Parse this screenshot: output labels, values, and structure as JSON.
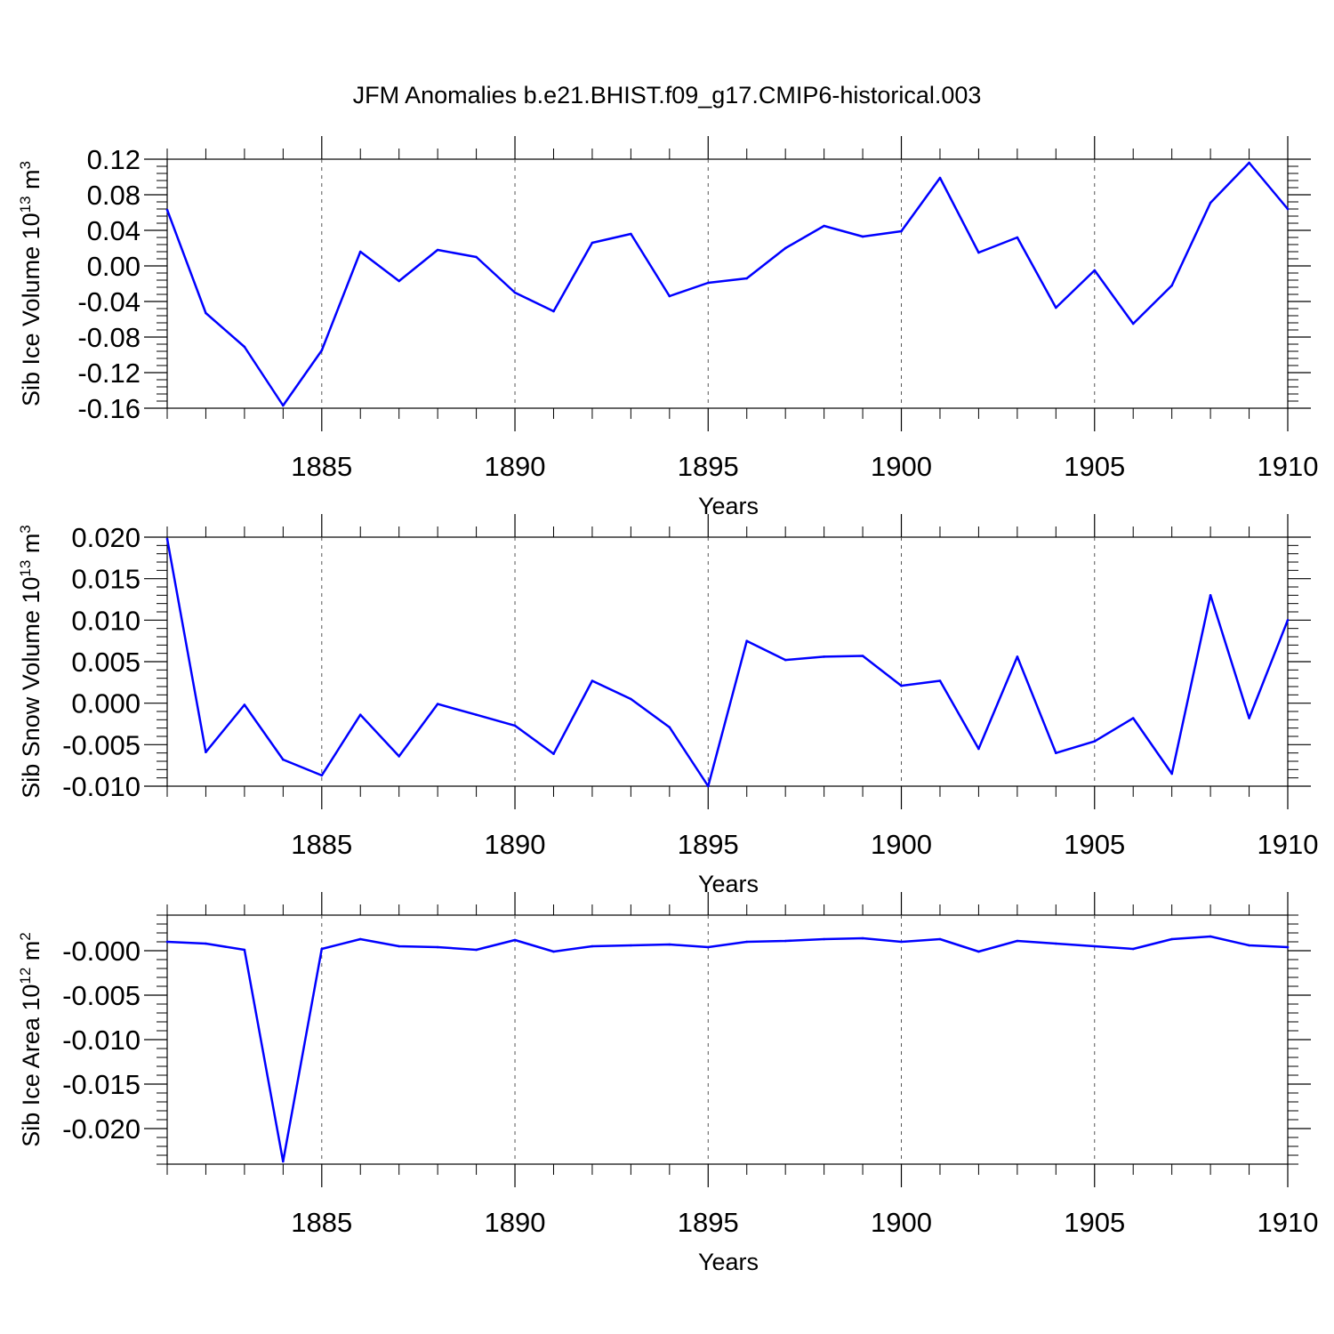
{
  "title": "JFM Anomalies b.e21.BHIST.f09_g17.CMIP6-historical.003",
  "line_color": "#0000ff",
  "chart_data": [
    {
      "type": "line",
      "ylabel_main": "Sib Ice Volume 10",
      "ylabel_exp": "13",
      "ylabel_unit": " m",
      "ylabel_unit_exp": "3",
      "xlabel": "Years",
      "xlim": [
        1881,
        1910
      ],
      "ylim": [
        -0.16,
        0.12
      ],
      "yticks": [
        "0.12",
        "0.08",
        "0.04",
        "0.00",
        "-0.04",
        "-0.08",
        "-0.12",
        "-0.16"
      ],
      "yticks_values": [
        0.12,
        0.08,
        0.04,
        0.0,
        -0.04,
        -0.08,
        -0.12,
        -0.16
      ],
      "xticks": [
        "1885",
        "1890",
        "1895",
        "1900",
        "1905",
        "1910"
      ],
      "xticks_values": [
        1885,
        1890,
        1895,
        1900,
        1905,
        1910
      ],
      "x": [
        1881,
        1882,
        1883,
        1884,
        1885,
        1886,
        1887,
        1888,
        1889,
        1890,
        1891,
        1892,
        1893,
        1894,
        1895,
        1896,
        1897,
        1898,
        1899,
        1900,
        1901,
        1902,
        1903,
        1904,
        1905,
        1906,
        1907,
        1908,
        1909,
        1910
      ],
      "values": [
        0.063,
        -0.053,
        -0.091,
        -0.157,
        -0.095,
        0.016,
        -0.017,
        0.018,
        0.01,
        -0.03,
        -0.051,
        0.026,
        0.036,
        -0.034,
        -0.019,
        -0.014,
        0.02,
        0.045,
        0.033,
        0.039,
        0.099,
        0.015,
        0.032,
        -0.047,
        -0.005,
        -0.065,
        -0.022,
        0.071,
        0.116,
        0.064
      ]
    },
    {
      "type": "line",
      "ylabel_main": "Sib Snow Volume 10",
      "ylabel_exp": "13",
      "ylabel_unit": " m",
      "ylabel_unit_exp": "3",
      "xlabel": "Years",
      "xlim": [
        1881,
        1910
      ],
      "ylim": [
        -0.01,
        0.02
      ],
      "yticks": [
        "0.020",
        "0.015",
        "0.010",
        "0.005",
        "0.000",
        "-0.005",
        "-0.010"
      ],
      "yticks_values": [
        0.02,
        0.015,
        0.01,
        0.005,
        0.0,
        -0.005,
        -0.01
      ],
      "xticks": [
        "1885",
        "1890",
        "1895",
        "1900",
        "1905",
        "1910"
      ],
      "xticks_values": [
        1885,
        1890,
        1895,
        1900,
        1905,
        1910
      ],
      "x": [
        1881,
        1882,
        1883,
        1884,
        1885,
        1886,
        1887,
        1888,
        1889,
        1890,
        1891,
        1892,
        1893,
        1894,
        1895,
        1896,
        1897,
        1898,
        1899,
        1900,
        1901,
        1902,
        1903,
        1904,
        1905,
        1906,
        1907,
        1908,
        1909,
        1910
      ],
      "values": [
        0.0198,
        -0.0059,
        -0.0002,
        -0.0068,
        -0.0087,
        -0.0014,
        -0.0064,
        -0.0001,
        -0.0014,
        -0.0027,
        -0.0061,
        0.0027,
        0.0005,
        -0.0029,
        -0.01,
        0.0075,
        0.0052,
        0.0056,
        0.0057,
        0.0021,
        0.0027,
        -0.0055,
        0.0056,
        -0.006,
        -0.0046,
        -0.0018,
        -0.0085,
        0.013,
        -0.0018,
        0.01
      ]
    },
    {
      "type": "line",
      "ylabel_main": "Sib Ice Area 10",
      "ylabel_exp": "12",
      "ylabel_unit": " m",
      "ylabel_unit_exp": "2",
      "xlabel": "Years",
      "xlim": [
        1881,
        1910
      ],
      "ylim": [
        -0.024,
        0.004
      ],
      "yticks": [
        "-0.000",
        "-0.005",
        "-0.010",
        "-0.015",
        "-0.020"
      ],
      "yticks_values": [
        0.0,
        -0.005,
        -0.01,
        -0.015,
        -0.02
      ],
      "xticks": [
        "1885",
        "1890",
        "1895",
        "1900",
        "1905",
        "1910"
      ],
      "xticks_values": [
        1885,
        1890,
        1895,
        1900,
        1905,
        1910
      ],
      "x": [
        1881,
        1882,
        1883,
        1884,
        1885,
        1886,
        1887,
        1888,
        1889,
        1890,
        1891,
        1892,
        1893,
        1894,
        1895,
        1896,
        1897,
        1898,
        1899,
        1900,
        1901,
        1902,
        1903,
        1904,
        1905,
        1906,
        1907,
        1908,
        1909,
        1910
      ],
      "values": [
        0.001,
        0.0008,
        0.0001,
        -0.0237,
        0.0002,
        0.0013,
        0.0005,
        0.0004,
        0.0001,
        0.0012,
        -0.0001,
        0.0005,
        0.0006,
        0.0007,
        0.0004,
        0.001,
        0.0011,
        0.0013,
        0.0014,
        0.001,
        0.0013,
        -0.0001,
        0.0011,
        0.0008,
        0.0005,
        0.0002,
        0.0013,
        0.0016,
        0.0006,
        0.0004
      ]
    }
  ]
}
